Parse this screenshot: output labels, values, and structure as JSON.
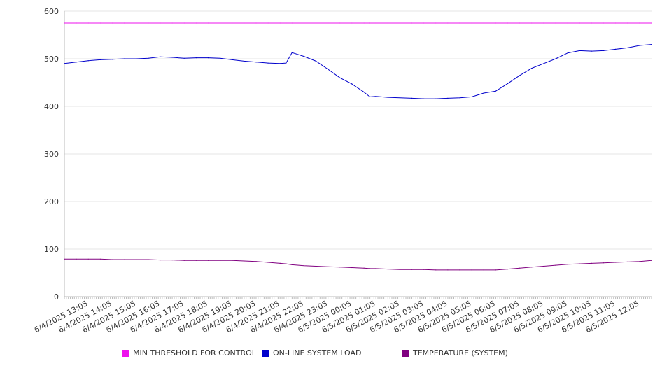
{
  "chart_data": {
    "type": "line",
    "title": "",
    "xlabel": "",
    "ylabel": "",
    "ylim": [
      0,
      600
    ],
    "yticks": [
      0,
      100,
      200,
      300,
      400,
      500,
      600
    ],
    "grid": true,
    "legend_position": "bottom",
    "x_tick_labels": [
      "6/4/2025 13:05",
      "6/4/2025 14:05",
      "6/4/2025 15:05",
      "6/4/2025 16:05",
      "6/4/2025 17:05",
      "6/4/2025 18:05",
      "6/4/2025 19:05",
      "6/4/2025 20:05",
      "6/4/2025 21:05",
      "6/4/2025 22:05",
      "6/4/2025 23:05",
      "6/5/2025 00:05",
      "6/5/2025 01:05",
      "6/5/2025 02:05",
      "6/5/2025 03:05",
      "6/5/2025 04:05",
      "6/5/2025 05:05",
      "6/5/2025 06:05",
      "6/5/2025 07:05",
      "6/5/2025 08:05",
      "6/5/2025 09:05",
      "6/5/2025 10:05",
      "6/5/2025 11:05",
      "6/5/2025 12:05"
    ],
    "x": [
      "6/4/2025 12:05",
      "6/4/2025 12:35",
      "6/4/2025 13:05",
      "6/4/2025 13:35",
      "6/4/2025 14:05",
      "6/4/2025 14:35",
      "6/4/2025 15:05",
      "6/4/2025 15:35",
      "6/4/2025 16:05",
      "6/4/2025 16:35",
      "6/4/2025 17:05",
      "6/4/2025 17:35",
      "6/4/2025 18:05",
      "6/4/2025 18:35",
      "6/4/2025 19:05",
      "6/4/2025 19:35",
      "6/4/2025 20:05",
      "6/4/2025 20:35",
      "6/4/2025 21:05",
      "6/4/2025 21:20",
      "6/4/2025 21:35",
      "6/4/2025 22:05",
      "6/4/2025 22:35",
      "6/4/2025 23:05",
      "6/4/2025 23:35",
      "6/5/2025 00:05",
      "6/5/2025 00:35",
      "6/5/2025 00:50",
      "6/5/2025 01:05",
      "6/5/2025 01:35",
      "6/5/2025 02:05",
      "6/5/2025 02:35",
      "6/5/2025 03:05",
      "6/5/2025 03:35",
      "6/5/2025 04:05",
      "6/5/2025 04:35",
      "6/5/2025 05:05",
      "6/5/2025 05:35",
      "6/5/2025 06:05",
      "6/5/2025 06:35",
      "6/5/2025 07:05",
      "6/5/2025 07:35",
      "6/5/2025 08:05",
      "6/5/2025 08:35",
      "6/5/2025 09:05",
      "6/5/2025 09:35",
      "6/5/2025 10:05",
      "6/5/2025 10:35",
      "6/5/2025 11:05",
      "6/5/2025 11:35",
      "6/5/2025 12:05",
      "6/5/2025 12:35"
    ],
    "series": [
      {
        "name": "MIN THRESHOLD FOR CONTROL",
        "color": "#ee11ee",
        "values": [
          575,
          575,
          575,
          575,
          575,
          575,
          575,
          575,
          575,
          575,
          575,
          575,
          575,
          575,
          575,
          575,
          575,
          575,
          575,
          575,
          575,
          575,
          575,
          575,
          575,
          575,
          575,
          575,
          575,
          575,
          575,
          575,
          575,
          575,
          575,
          575,
          575,
          575,
          575,
          575,
          575,
          575,
          575,
          575,
          575,
          575,
          575,
          575,
          575,
          575,
          575,
          575
        ]
      },
      {
        "name": "ON-LINE SYSTEM LOAD",
        "color": "#0000cc",
        "values": [
          490,
          493,
          496,
          498,
          499,
          500,
          500,
          501,
          504,
          503,
          501,
          502,
          502,
          501,
          498,
          495,
          493,
          491,
          490,
          491,
          513,
          505,
          495,
          478,
          460,
          447,
          430,
          420,
          421,
          419,
          418,
          417,
          416,
          416,
          417,
          418,
          420,
          428,
          432,
          448,
          465,
          480,
          490,
          500,
          512,
          517,
          516,
          517,
          520,
          523,
          528,
          530
        ]
      },
      {
        "name": "TEMPERATURE (SYSTEM)",
        "color": "#800080",
        "values": [
          79,
          79,
          79,
          79,
          78,
          78,
          78,
          78,
          77,
          77,
          76,
          76,
          76,
          76,
          76,
          75,
          74,
          72,
          70,
          69,
          67,
          65,
          64,
          63,
          62,
          61,
          60,
          59,
          59,
          58,
          57,
          57,
          57,
          56,
          56,
          56,
          56,
          56,
          56,
          58,
          60,
          62,
          64,
          66,
          68,
          69,
          70,
          71,
          72,
          73,
          74,
          76
        ]
      }
    ]
  }
}
